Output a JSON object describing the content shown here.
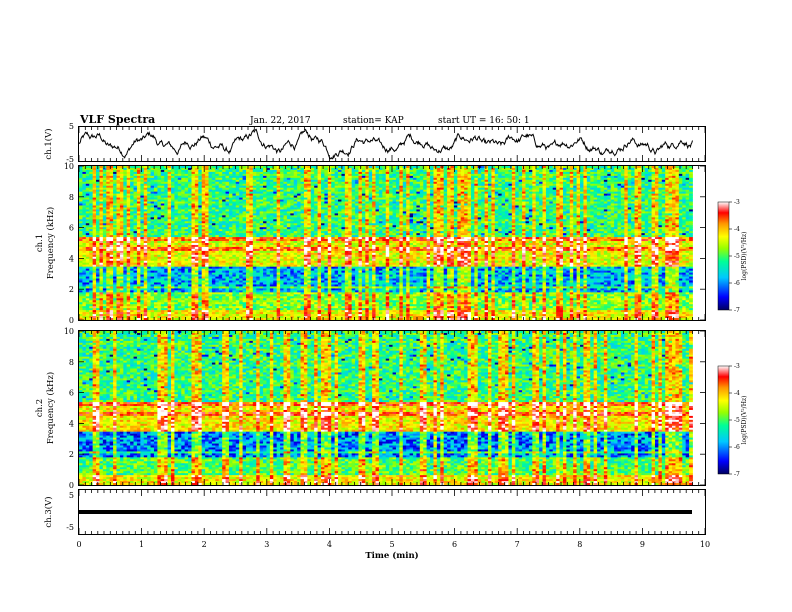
{
  "header": {
    "title": "VLF Spectra",
    "date": "Jan. 22, 2017",
    "station": "station= KAP",
    "start": "start  UT =   16: 50: 1"
  },
  "chart_data": [
    {
      "name": "ch1-waveform",
      "type": "line",
      "ylabel": "ch.1(V)",
      "ylim": [
        -5,
        5
      ],
      "yticks": [
        "5",
        "-5"
      ],
      "xlim": [
        0,
        10
      ],
      "x_extent": 9.8,
      "series": [
        {
          "color": "#000000"
        }
      ]
    },
    {
      "name": "ch1-spectrogram",
      "type": "heatmap",
      "ylabel": [
        "ch.1",
        "Frequency (kHz)"
      ],
      "ylim": [
        0,
        10
      ],
      "yticks": [
        "0",
        "2",
        "4",
        "6",
        "8",
        "10"
      ],
      "xlim": [
        0,
        10
      ],
      "x_extent": 9.8,
      "colorbar": {
        "label": "log(PSD)(V²/Hz)",
        "range": [
          -7,
          -3
        ],
        "ticks": [
          "-3",
          "-4",
          "-5",
          "-6",
          "-7"
        ]
      }
    },
    {
      "name": "ch2-spectrogram",
      "type": "heatmap",
      "ylabel": [
        "ch.2",
        "Frequency (kHz)"
      ],
      "ylim": [
        0,
        10
      ],
      "yticks": [
        "0",
        "2",
        "4",
        "6",
        "8",
        "10"
      ],
      "xlim": [
        0,
        10
      ],
      "x_extent": 9.8,
      "colorbar": {
        "label": "log(PSD)(V²/Hz)",
        "range": [
          -7,
          -3
        ],
        "ticks": [
          "-3",
          "-4",
          "-5",
          "-6",
          "-7"
        ]
      }
    },
    {
      "name": "ch3-waveform",
      "type": "line",
      "ylabel": "ch.3(V)",
      "ylim": [
        -5,
        5
      ],
      "yticks": [
        "5",
        "-5"
      ],
      "xlim": [
        0,
        10
      ],
      "x_extent": 9.8,
      "series": [
        {
          "color": "#000000",
          "constant_value": 0
        }
      ],
      "xlabel": "Time (min)",
      "xticks": [
        "0",
        "1",
        "2",
        "3",
        "4",
        "5",
        "6",
        "7",
        "8",
        "9",
        "10"
      ]
    }
  ],
  "colors": {
    "colormap": [
      "#000060",
      "#0000ff",
      "#00c8ff",
      "#00ff96",
      "#96ff00",
      "#ffff00",
      "#ff9600",
      "#ff0000",
      "#ffffff"
    ]
  }
}
